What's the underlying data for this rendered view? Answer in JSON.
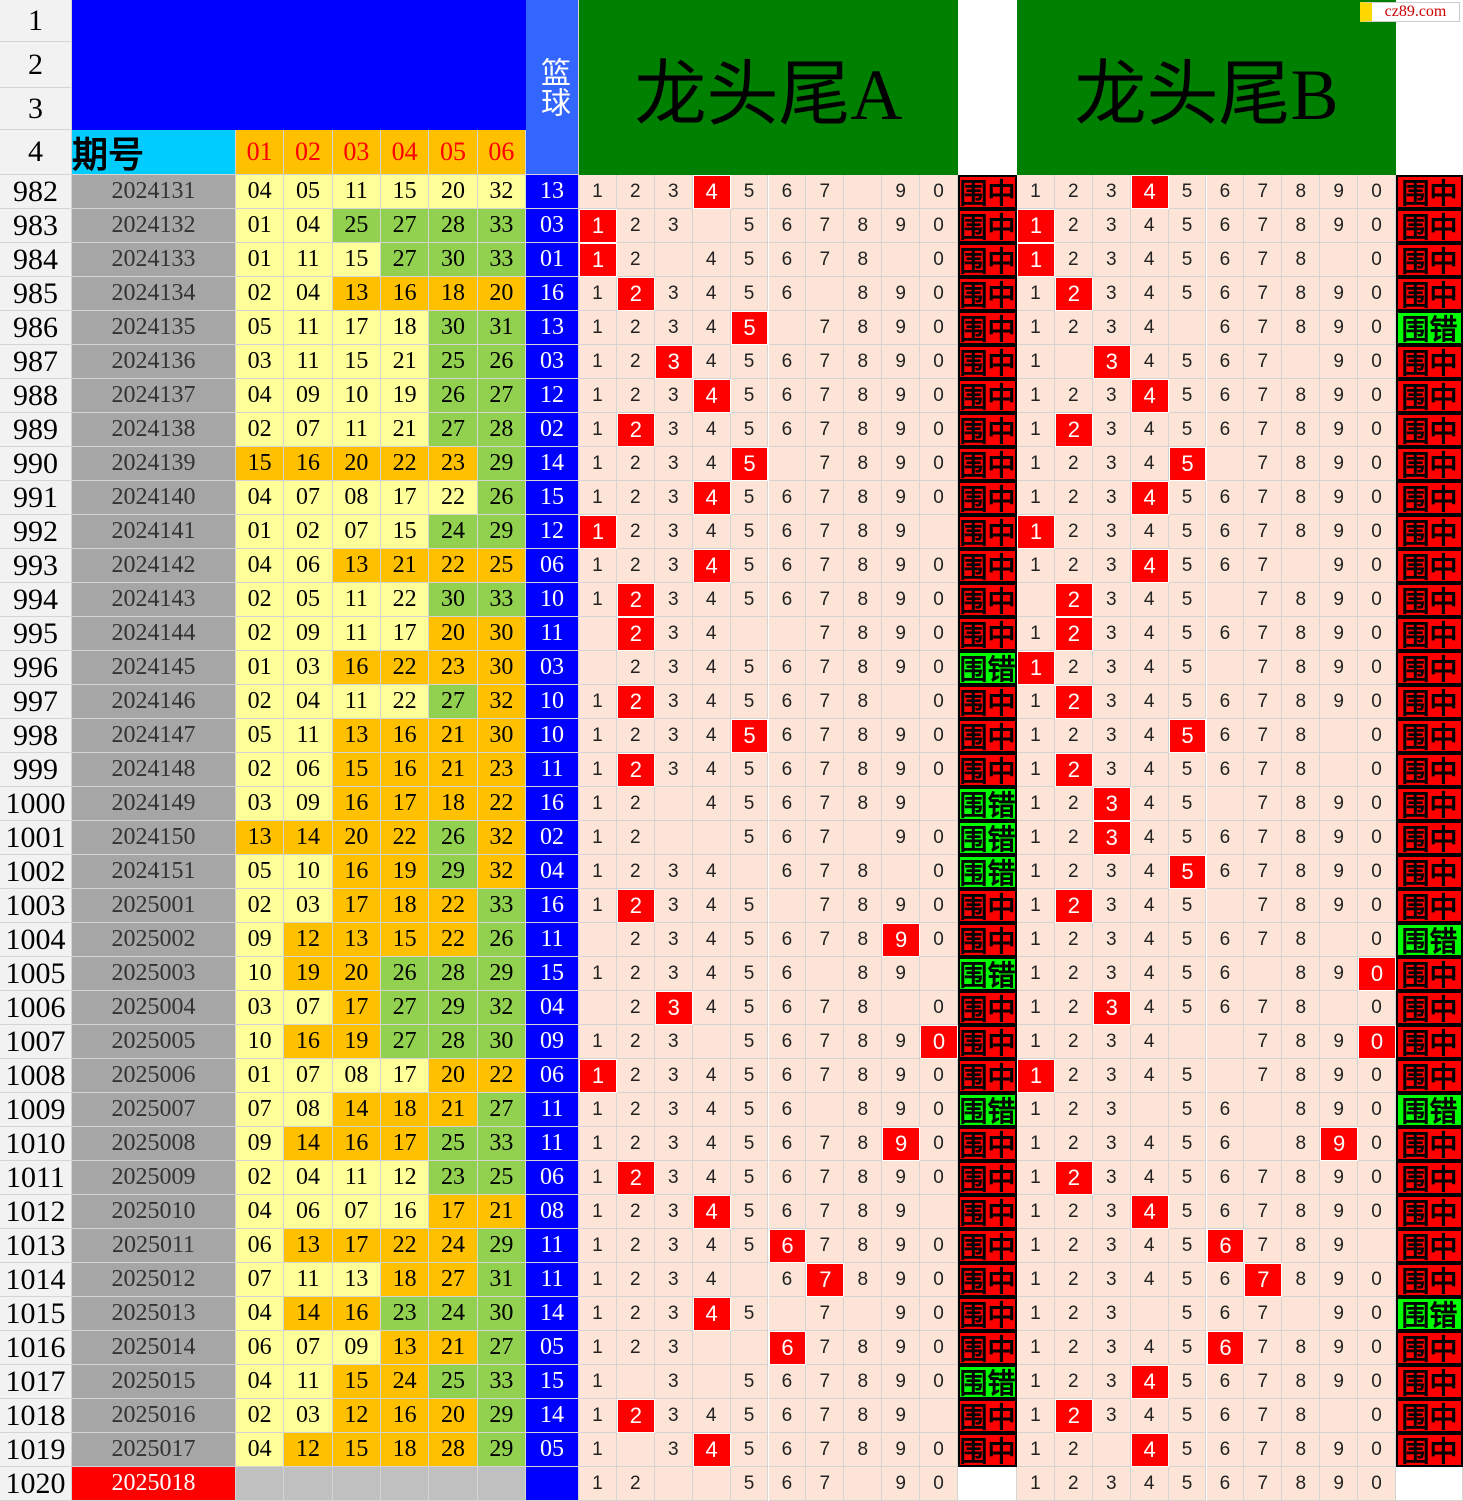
{
  "header": {
    "row_labels": [
      "1",
      "2",
      "3",
      "4"
    ],
    "period": "期号",
    "cols": [
      "01",
      "02",
      "03",
      "04",
      "05",
      "06"
    ],
    "basket": "篮球",
    "title_a": "龙头尾A",
    "title_b": "龙头尾B",
    "watermark": "cz89.com"
  },
  "colors": {
    "l": "#ffff99",
    "o": "#ffc000",
    "g": "#92d050"
  },
  "rows": [
    {
      "row": "982",
      "period": "2024131",
      "balls": [
        "04",
        "05",
        "11",
        "15",
        "20",
        "32"
      ],
      "ball_colors": "llllll",
      "basket": "13",
      "a": "1234567 90",
      "a_hit": "4",
      "a_result": "围中",
      "b": "1234567890",
      "b_hit": "4",
      "b_result": "围中"
    },
    {
      "row": "983",
      "period": "2024132",
      "balls": [
        "01",
        "04",
        "25",
        "27",
        "28",
        "33"
      ],
      "ball_colors": "llgggg",
      "basket": "03",
      "a": "123 567890",
      "a_hit": "1",
      "a_result": "围中",
      "b": "1234567890",
      "b_hit": "1",
      "b_result": "围中"
    },
    {
      "row": "984",
      "period": "2024133",
      "balls": [
        "01",
        "11",
        "15",
        "27",
        "30",
        "33"
      ],
      "ball_colors": "lllggg",
      "basket": "01",
      "a": "12 45678 0",
      "a_hit": "1",
      "a_result": "围中",
      "b": "12345678 0",
      "b_hit": "1",
      "b_result": "围中"
    },
    {
      "row": "985",
      "period": "2024134",
      "balls": [
        "02",
        "04",
        "13",
        "16",
        "18",
        "20"
      ],
      "ball_colors": "lloooo",
      "basket": "16",
      "a": "123456 890",
      "a_hit": "2",
      "a_result": "围中",
      "b": "1234567890",
      "b_hit": "2",
      "b_result": "围中"
    },
    {
      "row": "986",
      "period": "2024135",
      "balls": [
        "05",
        "11",
        "17",
        "18",
        "30",
        "31"
      ],
      "ball_colors": "llllgg",
      "basket": "13",
      "a": "12345 7890",
      "a_hit": "5",
      "a_result": "围中",
      "b": "1234 67890",
      "b_hit": null,
      "b_result": "围错"
    },
    {
      "row": "987",
      "period": "2024136",
      "balls": [
        "03",
        "11",
        "15",
        "21",
        "25",
        "26"
      ],
      "ball_colors": "llllgg",
      "basket": "03",
      "a": "1234567890",
      "a_hit": "3",
      "a_result": "围中",
      "b": "1 34567 90",
      "b_hit": "3",
      "b_result": "围中"
    },
    {
      "row": "988",
      "period": "2024137",
      "balls": [
        "04",
        "09",
        "10",
        "19",
        "26",
        "27"
      ],
      "ball_colors": "llllgg",
      "basket": "12",
      "a": "1234567890",
      "a_hit": "4",
      "a_result": "围中",
      "b": "1234567890",
      "b_hit": "4",
      "b_result": "围中"
    },
    {
      "row": "989",
      "period": "2024138",
      "balls": [
        "02",
        "07",
        "11",
        "21",
        "27",
        "28"
      ],
      "ball_colors": "llllgg",
      "basket": "02",
      "a": "1234567890",
      "a_hit": "2",
      "a_result": "围中",
      "b": "1234567890",
      "b_hit": "2",
      "b_result": "围中"
    },
    {
      "row": "990",
      "period": "2024139",
      "balls": [
        "15",
        "16",
        "20",
        "22",
        "23",
        "29"
      ],
      "ball_colors": "ooooog",
      "basket": "14",
      "a": "12345 7890",
      "a_hit": "5",
      "a_result": "围中",
      "b": "12345 7890",
      "b_hit": "5",
      "b_result": "围中"
    },
    {
      "row": "991",
      "period": "2024140",
      "balls": [
        "04",
        "07",
        "08",
        "17",
        "22",
        "26"
      ],
      "ball_colors": "lllllg",
      "basket": "15",
      "a": "1234567890",
      "a_hit": "4",
      "a_result": "围中",
      "b": "1234567890",
      "b_hit": "4",
      "b_result": "围中"
    },
    {
      "row": "992",
      "period": "2024141",
      "balls": [
        "01",
        "02",
        "07",
        "15",
        "24",
        "29"
      ],
      "ball_colors": "llllgg",
      "basket": "12",
      "a": "123456789 ",
      "a_hit": "1",
      "a_result": "围中",
      "b": "1234567890",
      "b_hit": "1",
      "b_result": "围中"
    },
    {
      "row": "993",
      "period": "2024142",
      "balls": [
        "04",
        "06",
        "13",
        "21",
        "22",
        "25"
      ],
      "ball_colors": "lloooo",
      "basket": "06",
      "a": "1234567890",
      "a_hit": "4",
      "a_result": "围中",
      "b": "1234567 90",
      "b_hit": "4",
      "b_result": "围中"
    },
    {
      "row": "994",
      "period": "2024143",
      "balls": [
        "02",
        "05",
        "11",
        "22",
        "30",
        "33"
      ],
      "ball_colors": "llllgg",
      "basket": "10",
      "a": "1234567890",
      "a_hit": "2",
      "a_result": "围中",
      "b": " 2345 7890",
      "b_hit": "2",
      "b_result": "围中"
    },
    {
      "row": "995",
      "period": "2024144",
      "balls": [
        "02",
        "09",
        "11",
        "17",
        "20",
        "30"
      ],
      "ball_colors": "lllloo",
      "basket": "11",
      "a": " 234  7890",
      "a_hit": "2",
      "a_result": "围中",
      "b": "1234567890",
      "b_hit": "2",
      "b_result": "围中"
    },
    {
      "row": "996",
      "period": "2024145",
      "balls": [
        "01",
        "03",
        "16",
        "22",
        "23",
        "30"
      ],
      "ball_colors": "lloooo",
      "basket": "03",
      "a": " 234567890",
      "a_hit": null,
      "a_result": "围错",
      "b": "12345 7890",
      "b_hit": "1",
      "b_result": "围中"
    },
    {
      "row": "997",
      "period": "2024146",
      "balls": [
        "02",
        "04",
        "11",
        "22",
        "27",
        "32"
      ],
      "ball_colors": "llllgo",
      "basket": "10",
      "a": "12345678 0",
      "a_hit": "2",
      "a_result": "围中",
      "b": "1234567890",
      "b_hit": "2",
      "b_result": "围中"
    },
    {
      "row": "998",
      "period": "2024147",
      "balls": [
        "05",
        "11",
        "13",
        "16",
        "21",
        "30"
      ],
      "ball_colors": "lloooo",
      "basket": "10",
      "a": "1234567890",
      "a_hit": "5",
      "a_result": "围中",
      "b": "12345678 0",
      "b_hit": "5",
      "b_result": "围中"
    },
    {
      "row": "999",
      "period": "2024148",
      "balls": [
        "02",
        "06",
        "15",
        "16",
        "21",
        "23"
      ],
      "ball_colors": "lloooo",
      "basket": "11",
      "a": "1234567890",
      "a_hit": "2",
      "a_result": "围中",
      "b": "12345678 0",
      "b_hit": "2",
      "b_result": "围中"
    },
    {
      "row": "1000",
      "period": "2024149",
      "balls": [
        "03",
        "09",
        "16",
        "17",
        "18",
        "22"
      ],
      "ball_colors": "lloooo",
      "basket": "16",
      "a": "12 456789 ",
      "a_hit": null,
      "a_result": "围错",
      "b": "12345 7890",
      "b_hit": "3",
      "b_result": "围中"
    },
    {
      "row": "1001",
      "period": "2024150",
      "balls": [
        "13",
        "14",
        "20",
        "22",
        "26",
        "32"
      ],
      "ball_colors": "oooogo",
      "basket": "02",
      "a": "12  567 90",
      "a_hit": null,
      "a_result": "围错",
      "b": "1234567890",
      "b_hit": "3",
      "b_result": "围中"
    },
    {
      "row": "1002",
      "period": "2024151",
      "balls": [
        "05",
        "10",
        "16",
        "19",
        "29",
        "32"
      ],
      "ball_colors": "lloogo",
      "basket": "04",
      "a": "1234 678 0",
      "a_hit": null,
      "a_result": "围错",
      "b": "1234567890",
      "b_hit": "5",
      "b_result": "围中"
    },
    {
      "row": "1003",
      "period": "2025001",
      "balls": [
        "02",
        "03",
        "17",
        "18",
        "22",
        "33"
      ],
      "ball_colors": "llooog",
      "basket": "16",
      "a": "12345 7890",
      "a_hit": "2",
      "a_result": "围中",
      "b": "12345 7890",
      "b_hit": "2",
      "b_result": "围中"
    },
    {
      "row": "1004",
      "period": "2025002",
      "balls": [
        "09",
        "12",
        "13",
        "15",
        "22",
        "26"
      ],
      "ball_colors": "loooog",
      "basket": "11",
      "a": " 234567890",
      "a_hit": "9",
      "a_result": "围中",
      "b": "12345678 0",
      "b_hit": null,
      "b_result": "围错"
    },
    {
      "row": "1005",
      "period": "2025003",
      "balls": [
        "10",
        "19",
        "20",
        "26",
        "28",
        "29"
      ],
      "ball_colors": "looggg",
      "basket": "15",
      "a": "123456 89 ",
      "a_hit": null,
      "a_result": "围错",
      "b": "123456 890",
      "b_hit": "0",
      "b_result": "围中"
    },
    {
      "row": "1006",
      "period": "2025004",
      "balls": [
        "03",
        "07",
        "17",
        "27",
        "29",
        "32"
      ],
      "ball_colors": "lloggg",
      "basket": "04",
      "a": " 2345678 0",
      "a_hit": "3",
      "a_result": "围中",
      "b": "12345678 0",
      "b_hit": "3",
      "b_result": "围中"
    },
    {
      "row": "1007",
      "period": "2025005",
      "balls": [
        "10",
        "16",
        "19",
        "27",
        "28",
        "30"
      ],
      "ball_colors": "looggg",
      "basket": "09",
      "a": "123 567890",
      "a_hit": "0",
      "a_result": "围中",
      "b": "1234  7890",
      "b_hit": "0",
      "b_result": "围中"
    },
    {
      "row": "1008",
      "period": "2025006",
      "balls": [
        "01",
        "07",
        "08",
        "17",
        "20",
        "22"
      ],
      "ball_colors": "llllooo",
      "basket": "06",
      "a": "1234567890",
      "a_hit": "1",
      "a_result": "围中",
      "b": "12345 7890",
      "b_hit": "1",
      "b_result": "围中"
    },
    {
      "row": "1009",
      "period": "2025007",
      "balls": [
        "07",
        "08",
        "14",
        "18",
        "21",
        "27"
      ],
      "ball_colors": "llooog",
      "basket": "11",
      "a": "123456 890",
      "a_hit": null,
      "a_result": "围错",
      "b": "123 56 890",
      "b_hit": null,
      "b_result": "围错"
    },
    {
      "row": "1010",
      "period": "2025008",
      "balls": [
        "09",
        "14",
        "16",
        "17",
        "25",
        "33"
      ],
      "ball_colors": "looogg",
      "basket": "11",
      "a": "1234567890",
      "a_hit": "9",
      "a_result": "围中",
      "b": "123456 890",
      "b_hit": "9",
      "b_result": "围中"
    },
    {
      "row": "1011",
      "period": "2025009",
      "balls": [
        "02",
        "04",
        "11",
        "12",
        "23",
        "25"
      ],
      "ball_colors": "llllgg",
      "basket": "06",
      "a": "1234567890",
      "a_hit": "2",
      "a_result": "围中",
      "b": "1234567890",
      "b_hit": "2",
      "b_result": "围中"
    },
    {
      "row": "1012",
      "period": "2025010",
      "balls": [
        "04",
        "06",
        "07",
        "16",
        "17",
        "21"
      ],
      "ball_colors": "llllooo",
      "basket": "08",
      "a": "123456789 ",
      "a_hit": "4",
      "a_result": "围中",
      "b": "1234567890",
      "b_hit": "4",
      "b_result": "围中"
    },
    {
      "row": "1013",
      "period": "2025011",
      "balls": [
        "06",
        "13",
        "17",
        "22",
        "24",
        "29"
      ],
      "ball_colors": "loooog",
      "basket": "11",
      "a": "1234567890",
      "a_hit": "6",
      "a_result": "围中",
      "b": "123456789 ",
      "b_hit": "6",
      "b_result": "围中"
    },
    {
      "row": "1014",
      "period": "2025012",
      "balls": [
        "07",
        "11",
        "13",
        "18",
        "27",
        "31"
      ],
      "ball_colors": "llloogg",
      "basket": "11",
      "a": "1234 67890",
      "a_hit": "7",
      "a_result": "围中",
      "b": "1234567890",
      "b_hit": "7",
      "b_result": "围中"
    },
    {
      "row": "1015",
      "period": "2025013",
      "balls": [
        "04",
        "14",
        "16",
        "23",
        "24",
        "30"
      ],
      "ball_colors": "looggg",
      "basket": "14",
      "a": "12345 7 90",
      "a_hit": "4",
      "a_result": "围中",
      "b": "123 567 90",
      "b_hit": null,
      "b_result": "围错"
    },
    {
      "row": "1016",
      "period": "2025014",
      "balls": [
        "06",
        "07",
        "09",
        "13",
        "21",
        "27"
      ],
      "ball_colors": "llloog",
      "basket": "05",
      "a": "123  67890",
      "a_hit": "6",
      "a_result": "围中",
      "b": "1234567890",
      "b_hit": "6",
      "b_result": "围中"
    },
    {
      "row": "1017",
      "period": "2025015",
      "balls": [
        "04",
        "11",
        "15",
        "24",
        "25",
        "33"
      ],
      "ball_colors": "llorgg",
      "basket": "15",
      "a": "1 3 567890",
      "a_hit": null,
      "a_result": "围错",
      "b": "1234567890",
      "b_hit": "4",
      "b_result": "围中"
    },
    {
      "row": "1018",
      "period": "2025016",
      "balls": [
        "02",
        "03",
        "12",
        "16",
        "20",
        "29"
      ],
      "ball_colors": "llooog",
      "basket": "14",
      "a": "123456789 ",
      "a_hit": "2",
      "a_result": "围中",
      "b": "12345678 0",
      "b_hit": "2",
      "b_result": "围中"
    },
    {
      "row": "1019",
      "period": "2025017",
      "balls": [
        "04",
        "12",
        "15",
        "18",
        "28",
        "29"
      ],
      "ball_colors": "loooog",
      "basket": "05",
      "a": "1 34567890",
      "a_hit": "4",
      "a_result": "围中",
      "b": "12 4567890",
      "b_hit": "4",
      "b_result": "围中"
    },
    {
      "row": "1020",
      "period": "2025018",
      "balls": [],
      "ball_colors": "",
      "basket": null,
      "a": "12  567 90",
      "a_hit": null,
      "a_result": null,
      "b": "1234567890",
      "b_hit": null,
      "b_result": null
    }
  ]
}
